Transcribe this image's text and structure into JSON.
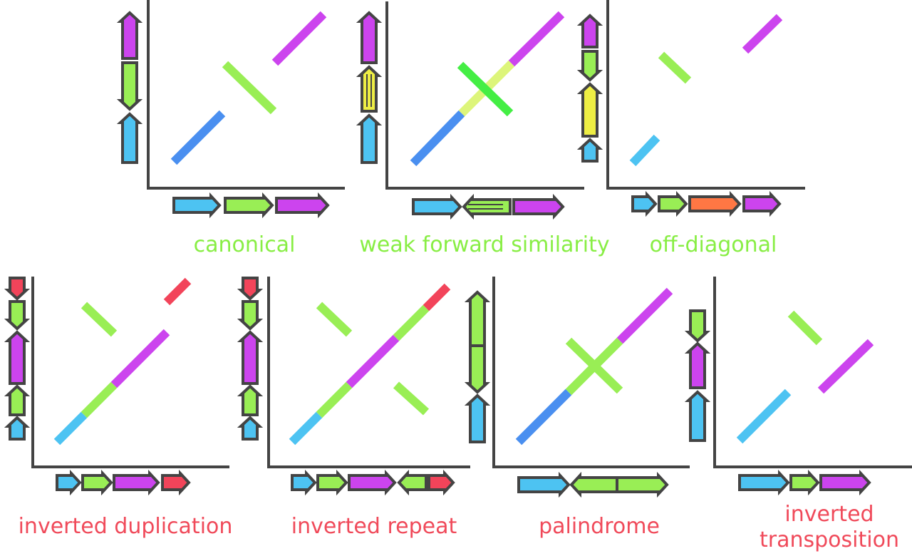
{
  "colors": {
    "blue": "#4a8ff0",
    "cyan": "#4dc3f2",
    "green": "#99ee55",
    "bright_green": "#44ee44",
    "pale_yellow_green": "#ddf57a",
    "yellow": "#eeee44",
    "magenta": "#cc44ee",
    "orange": "#ff7744",
    "red": "#f2445a",
    "axis": "#444444",
    "label_green": "#88ee44",
    "label_red": "#f04a5a"
  },
  "panels": [
    {
      "id": "canonical",
      "label": "canonical",
      "label_color": "label_green",
      "x_genes": [
        {
          "color": "cyan",
          "dir": "fwd"
        },
        {
          "color": "green",
          "dir": "fwd"
        },
        {
          "color": "magenta",
          "dir": "fwd"
        }
      ],
      "y_genes": [
        {
          "color": "cyan",
          "dir": "fwd"
        },
        {
          "color": "green",
          "dir": "rev"
        },
        {
          "color": "magenta",
          "dir": "fwd"
        }
      ]
    },
    {
      "id": "weak-forward-similarity",
      "label": "weak forward similarity",
      "label_color": "label_green",
      "x_genes": [
        {
          "color": "cyan",
          "dir": "fwd"
        },
        {
          "color": "green",
          "dir": "rev",
          "striped": true
        },
        {
          "color": "magenta",
          "dir": "fwd"
        }
      ],
      "y_genes": [
        {
          "color": "cyan",
          "dir": "fwd"
        },
        {
          "color": "yellow",
          "dir": "fwd",
          "striped": true
        },
        {
          "color": "magenta",
          "dir": "fwd"
        }
      ]
    },
    {
      "id": "off-diagonal",
      "label": "off-diagonal",
      "label_color": "label_green",
      "x_genes": [
        {
          "color": "cyan",
          "dir": "fwd"
        },
        {
          "color": "green",
          "dir": "fwd"
        },
        {
          "color": "orange",
          "dir": "fwd"
        },
        {
          "color": "magenta",
          "dir": "fwd"
        }
      ],
      "y_genes": [
        {
          "color": "cyan",
          "dir": "fwd"
        },
        {
          "color": "yellow",
          "dir": "fwd"
        },
        {
          "color": "green",
          "dir": "rev"
        },
        {
          "color": "magenta",
          "dir": "fwd"
        }
      ]
    },
    {
      "id": "inverted-duplication",
      "label": "inverted duplication",
      "label_color": "label_red",
      "x_genes": [
        {
          "color": "cyan",
          "dir": "fwd"
        },
        {
          "color": "green",
          "dir": "fwd"
        },
        {
          "color": "magenta",
          "dir": "fwd"
        },
        {
          "color": "red",
          "dir": "fwd"
        }
      ],
      "y_genes": [
        {
          "color": "cyan",
          "dir": "fwd"
        },
        {
          "color": "green",
          "dir": "fwd"
        },
        {
          "color": "magenta",
          "dir": "fwd"
        },
        {
          "color": "green",
          "dir": "rev"
        },
        {
          "color": "red",
          "dir": "rev"
        }
      ]
    },
    {
      "id": "inverted-repeat",
      "label": "inverted repeat",
      "label_color": "label_red",
      "x_genes": [
        {
          "color": "cyan",
          "dir": "fwd"
        },
        {
          "color": "green",
          "dir": "fwd"
        },
        {
          "color": "magenta",
          "dir": "fwd"
        },
        {
          "color": "green",
          "dir": "rev"
        },
        {
          "color": "red",
          "dir": "fwd"
        }
      ],
      "y_genes": [
        {
          "color": "cyan",
          "dir": "fwd"
        },
        {
          "color": "green",
          "dir": "fwd"
        },
        {
          "color": "magenta",
          "dir": "fwd"
        },
        {
          "color": "green",
          "dir": "rev"
        },
        {
          "color": "red",
          "dir": "rev"
        }
      ]
    },
    {
      "id": "palindrome",
      "label": "palindrome",
      "label_color": "label_red",
      "x_genes": [
        {
          "color": "cyan",
          "dir": "fwd"
        },
        {
          "color": "green",
          "dir": "rev"
        },
        {
          "color": "green",
          "dir": "fwd"
        },
        {
          "color": "magenta",
          "dir": "fwd"
        }
      ],
      "y_genes": [
        {
          "color": "cyan",
          "dir": "fwd"
        },
        {
          "color": "green",
          "dir": "rev"
        },
        {
          "color": "green",
          "dir": "fwd"
        },
        {
          "color": "magenta",
          "dir": "fwd"
        }
      ]
    },
    {
      "id": "inverted-transposition",
      "label": "inverted\ntransposition",
      "label_color": "label_red",
      "x_genes": [
        {
          "color": "cyan",
          "dir": "fwd"
        },
        {
          "color": "green",
          "dir": "fwd"
        },
        {
          "color": "magenta",
          "dir": "fwd"
        }
      ],
      "y_genes": [
        {
          "color": "cyan",
          "dir": "fwd"
        },
        {
          "color": "magenta",
          "dir": "fwd"
        },
        {
          "color": "green",
          "dir": "rev"
        }
      ]
    }
  ]
}
